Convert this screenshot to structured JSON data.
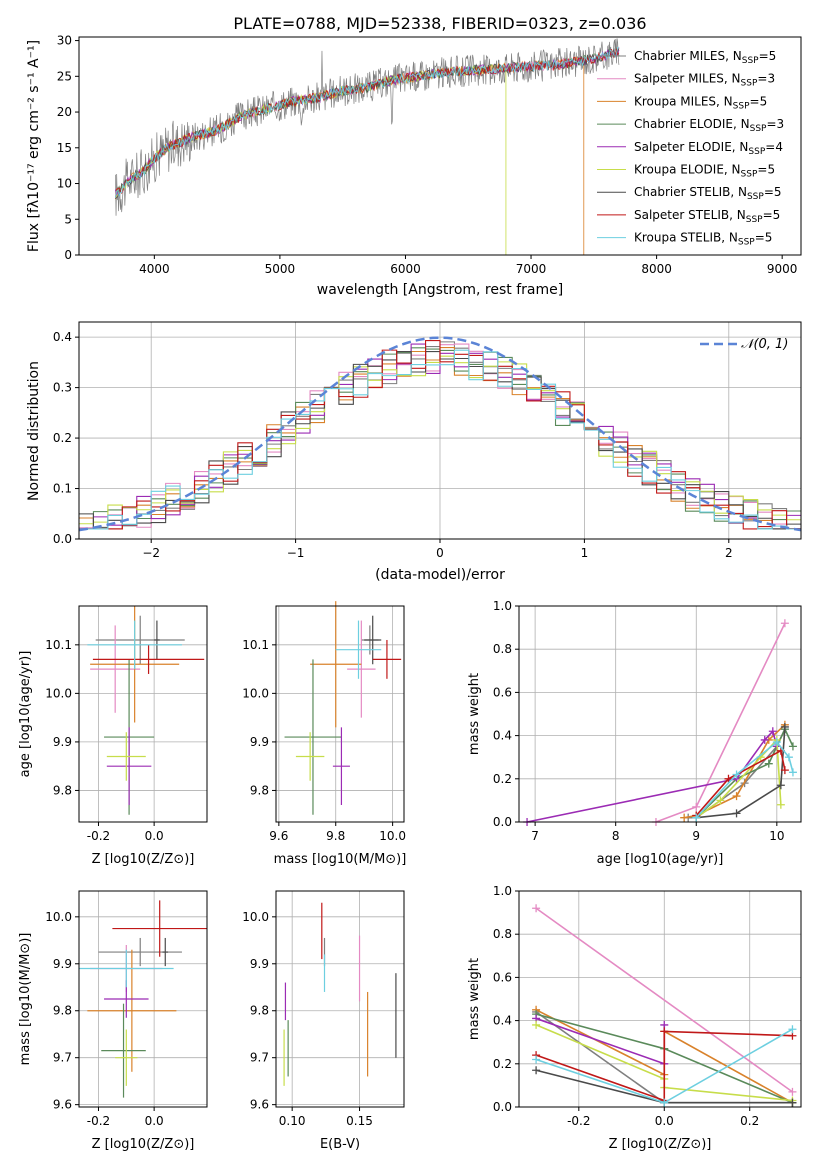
{
  "figure_title": "PLATE=0788, MJD=52338, FIBERID=0323, z=0.036",
  "colors": {
    "spectrum_data": "#7f7f7f",
    "gaussian": "#5b84d6",
    "models": [
      "#7f7f7f",
      "#e48ac3",
      "#d9822b",
      "#5a8a5a",
      "#9b2bb4",
      "#c7dd4a",
      "#4a4a4a",
      "#c01818",
      "#6dcfe0"
    ]
  },
  "legend_models": [
    {
      "prefix": "Chabrier MILES, N",
      "sub": "SSP",
      "suffix": "=5"
    },
    {
      "prefix": "Salpeter MILES, N",
      "sub": "SSP",
      "suffix": "=3"
    },
    {
      "prefix": "Kroupa MILES, N",
      "sub": "SSP",
      "suffix": "=5"
    },
    {
      "prefix": "Chabrier ELODIE, N",
      "sub": "SSP",
      "suffix": "=3"
    },
    {
      "prefix": "Salpeter ELODIE, N",
      "sub": "SSP",
      "suffix": "=4"
    },
    {
      "prefix": "Kroupa ELODIE, N",
      "sub": "SSP",
      "suffix": "=5"
    },
    {
      "prefix": "Chabrier STELIB, N",
      "sub": "SSP",
      "suffix": "=5"
    },
    {
      "prefix": "Salpeter STELIB, N",
      "sub": "SSP",
      "suffix": "=5"
    },
    {
      "prefix": "Kroupa STELIB, N",
      "sub": "SSP",
      "suffix": "=5"
    }
  ],
  "chart_data": [
    {
      "type": "line",
      "id": "spectrum",
      "title": "PLATE=0788, MJD=52338, FIBERID=0323, z=0.036",
      "xlabel": "wavelength [Angstrom, rest frame]",
      "ylabel": "Flux [fλ10⁻¹⁷ erg cm⁻² s⁻¹ A⁻¹]",
      "xlim": [
        3400,
        9150
      ],
      "ylim": [
        0,
        30.5
      ],
      "xticks": [
        4000,
        5000,
        6000,
        7000,
        8000,
        9000
      ],
      "yticks": [
        0,
        5,
        10,
        15,
        20,
        25,
        30
      ],
      "continuum_x": [
        3700,
        3800,
        3900,
        4000,
        4100,
        4300,
        4500,
        4700,
        4900,
        5100,
        5300,
        5500,
        5700,
        5900,
        6100,
        6300,
        6500,
        6700,
        6900,
        7100,
        7300,
        7500,
        7700
      ],
      "continuum_y": [
        8.5,
        10.5,
        11.5,
        13.5,
        15,
        16.5,
        17.5,
        19.5,
        20.5,
        21.5,
        22,
        23,
        23.5,
        24.5,
        25,
        25.5,
        25.8,
        26,
        26.3,
        26.5,
        26.8,
        27.5,
        28.5
      ],
      "model_cutoffs": [
        {
          "model": "Kroupa ELODIE",
          "x": 6800
        },
        {
          "model": "Kroupa MILES",
          "x": 7420
        }
      ],
      "legend_position": "right"
    },
    {
      "type": "bar",
      "id": "residuals",
      "xlabel": "(data-model)/error",
      "ylabel": "Normed distribution",
      "xlim": [
        -2.5,
        2.5
      ],
      "ylim": [
        0,
        0.43
      ],
      "xticks": [
        -2,
        -1,
        0,
        1,
        2
      ],
      "yticks": [
        0.0,
        0.1,
        0.2,
        0.3,
        0.4
      ],
      "bin_width": 0.1,
      "reference_curve": "N(0,1)",
      "legend_label": "𝒩(0, 1)",
      "legend_position": "top-right",
      "grid": true
    },
    {
      "type": "scatter",
      "id": "age_vs_Z",
      "xlabel": "Z [log10(Z/Z⊙)]",
      "ylabel": "age [log10(age/yr)]",
      "xlim": [
        -0.27,
        0.19
      ],
      "ylim": [
        9.735,
        10.18
      ],
      "xticks": [
        -0.2,
        0.0
      ],
      "yticks": [
        9.8,
        9.9,
        10.0,
        10.1
      ],
      "points": [
        {
          "x": -0.05,
          "y": 10.11,
          "xerr": 0.16,
          "yerr": 0.05
        },
        {
          "x": -0.14,
          "y": 10.05,
          "xerr": 0.09,
          "yerr": 0.09
        },
        {
          "x": -0.07,
          "y": 10.06,
          "xerr": 0.16,
          "yerr": 0.12
        },
        {
          "x": -0.09,
          "y": 9.91,
          "xerr": 0.09,
          "yerr": 0.16
        },
        {
          "x": -0.09,
          "y": 9.85,
          "xerr": 0.08,
          "yerr": 0.08
        },
        {
          "x": -0.1,
          "y": 9.87,
          "xerr": 0.07,
          "yerr": 0.05
        },
        {
          "x": 0.01,
          "y": 10.11,
          "xerr": 0.01,
          "yerr": 0.04
        },
        {
          "x": -0.02,
          "y": 10.07,
          "xerr": 0.2,
          "yerr": 0.03
        },
        {
          "x": -0.07,
          "y": 10.1,
          "xerr": 0.17,
          "yerr": 0.05
        }
      ]
    },
    {
      "type": "scatter",
      "id": "age_vs_mass",
      "xlabel": "mass [log10(M/M⊙)]",
      "ylabel": "",
      "xlim": [
        9.59,
        10.04
      ],
      "ylim": [
        9.735,
        10.18
      ],
      "xticks": [
        9.6,
        9.8,
        10.0
      ],
      "yticks": [
        9.8,
        9.9,
        10.0,
        10.1
      ],
      "points": [
        {
          "x": 9.92,
          "y": 10.11,
          "xerr": 0.03,
          "yerr": 0.03
        },
        {
          "x": 9.89,
          "y": 10.05,
          "xerr": 0.05,
          "yerr": 0.1
        },
        {
          "x": 9.8,
          "y": 10.06,
          "xerr": 0.09,
          "yerr": 0.13
        },
        {
          "x": 9.72,
          "y": 9.91,
          "xerr": 0.1,
          "yerr": 0.16
        },
        {
          "x": 9.82,
          "y": 9.85,
          "xerr": 0.03,
          "yerr": 0.08
        },
        {
          "x": 9.71,
          "y": 9.87,
          "xerr": 0.05,
          "yerr": 0.05
        },
        {
          "x": 9.93,
          "y": 10.11,
          "xerr": 0.03,
          "yerr": 0.05
        },
        {
          "x": 9.98,
          "y": 10.07,
          "xerr": 0.05,
          "yerr": 0.04
        },
        {
          "x": 9.88,
          "y": 10.09,
          "xerr": 0.08,
          "yerr": 0.06
        }
      ]
    },
    {
      "type": "line",
      "id": "mass_weight_vs_age",
      "xlabel": "age [log10(age/yr)]",
      "ylabel": "mass weight",
      "xlim": [
        6.8,
        10.3
      ],
      "ylim": [
        0,
        1
      ],
      "xticks": [
        7,
        8,
        9,
        10
      ],
      "yticks": [
        0.0,
        0.2,
        0.4,
        0.6,
        0.8,
        1.0
      ],
      "grid": true,
      "series": [
        {
          "model": "Chabrier MILES",
          "x": [
            8.9,
            9.0,
            9.6,
            10.0,
            10.1
          ],
          "y": [
            0.02,
            0.02,
            0.18,
            0.35,
            0.43
          ]
        },
        {
          "model": "Salpeter MILES",
          "x": [
            8.5,
            9.0,
            10.1
          ],
          "y": [
            0.0,
            0.07,
            0.92
          ]
        },
        {
          "model": "Kroupa MILES",
          "x": [
            8.85,
            9.0,
            9.5,
            9.9,
            10.1
          ],
          "y": [
            0.02,
            0.03,
            0.12,
            0.38,
            0.45
          ]
        },
        {
          "model": "Chabrier ELODIE",
          "x": [
            9.0,
            9.5,
            9.9,
            10.1,
            10.2
          ],
          "y": [
            0.02,
            0.2,
            0.27,
            0.43,
            0.35
          ]
        },
        {
          "model": "Salpeter ELODIE",
          "x": [
            6.9,
            9.5,
            9.85,
            9.95,
            10.0
          ],
          "y": [
            0.0,
            0.2,
            0.38,
            0.42,
            0.35
          ]
        },
        {
          "model": "Kroupa ELODIE",
          "x": [
            9.0,
            9.3,
            9.8,
            10.0,
            10.05
          ],
          "y": [
            0.02,
            0.1,
            0.3,
            0.38,
            0.08
          ]
        },
        {
          "model": "Chabrier STELIB",
          "x": [
            9.0,
            9.5,
            10.05,
            10.1
          ],
          "y": [
            0.02,
            0.04,
            0.17,
            0.44
          ]
        },
        {
          "model": "Salpeter STELIB",
          "x": [
            9.0,
            9.4,
            10.05,
            10.1
          ],
          "y": [
            0.03,
            0.2,
            0.33,
            0.24
          ]
        },
        {
          "model": "Kroupa STELIB",
          "x": [
            9.0,
            9.5,
            10.0,
            10.15,
            10.2
          ],
          "y": [
            0.02,
            0.22,
            0.37,
            0.3,
            0.23
          ]
        }
      ]
    },
    {
      "type": "scatter",
      "id": "mass_vs_Z",
      "xlabel": "Z [log10(Z/Z⊙)]",
      "ylabel": "mass [log10(M/M⊙)]",
      "xlim": [
        -0.27,
        0.19
      ],
      "ylim": [
        9.595,
        10.055
      ],
      "xticks": [
        -0.2,
        0.0
      ],
      "yticks": [
        9.6,
        9.7,
        9.8,
        9.9,
        10.0
      ],
      "points": [
        {
          "x": -0.05,
          "y": 9.925,
          "xerr": 0.15,
          "yerr": 0.03
        },
        {
          "x": -0.1,
          "y": 9.89,
          "xerr": 0.13,
          "yerr": 0.05
        },
        {
          "x": -0.08,
          "y": 9.8,
          "xerr": 0.16,
          "yerr": 0.13
        },
        {
          "x": -0.11,
          "y": 9.715,
          "xerr": 0.08,
          "yerr": 0.1
        },
        {
          "x": -0.1,
          "y": 9.825,
          "xerr": 0.08,
          "yerr": 0.04
        },
        {
          "x": -0.1,
          "y": 9.7,
          "xerr": 0.04,
          "yerr": 0.06
        },
        {
          "x": 0.04,
          "y": 9.925,
          "xerr": 0.01,
          "yerr": 0.03
        },
        {
          "x": 0.02,
          "y": 9.975,
          "xerr": 0.17,
          "yerr": 0.06
        },
        {
          "x": -0.1,
          "y": 9.89,
          "xerr": 0.17,
          "yerr": 0.04
        }
      ]
    },
    {
      "type": "scatter",
      "id": "mass_vs_EBV",
      "xlabel": "E(B-V)",
      "ylabel": "",
      "xlim": [
        0.088,
        0.183
      ],
      "ylim": [
        9.595,
        10.055
      ],
      "xticks": [
        0.1,
        0.15
      ],
      "yticks": [
        9.6,
        9.7,
        9.8,
        9.9,
        10.0
      ],
      "points": [
        {
          "x": 0.124,
          "y": 9.925,
          "yerr": 0.03
        },
        {
          "x": 0.15,
          "y": 9.89,
          "yerr": 0.07
        },
        {
          "x": 0.156,
          "y": 9.75,
          "yerr": 0.09
        },
        {
          "x": 0.097,
          "y": 9.72,
          "yerr": 0.06
        },
        {
          "x": 0.095,
          "y": 9.82,
          "yerr": 0.04
        },
        {
          "x": 0.094,
          "y": 9.7,
          "yerr": 0.06
        },
        {
          "x": 0.177,
          "y": 9.79,
          "yerr": 0.09
        },
        {
          "x": 0.122,
          "y": 9.97,
          "yerr": 0.06
        },
        {
          "x": 0.124,
          "y": 9.88,
          "yerr": 0.04
        }
      ]
    },
    {
      "type": "line",
      "id": "mass_weight_vs_Z",
      "xlabel": "Z [log10(Z/Z⊙)]",
      "ylabel": "mass weight",
      "xlim": [
        -0.34,
        0.32
      ],
      "ylim": [
        0,
        1
      ],
      "xticks": [
        -0.2,
        0.0,
        0.2
      ],
      "yticks": [
        0.0,
        0.2,
        0.4,
        0.6,
        0.8,
        1.0
      ],
      "grid": true,
      "series": [
        {
          "model": "Chabrier MILES",
          "x": [
            -0.3,
            0.0,
            0.3
          ],
          "y": [
            0.44,
            0.02,
            0.02
          ]
        },
        {
          "model": "Salpeter MILES",
          "x": [
            -0.3,
            0.3
          ],
          "y": [
            0.92,
            0.07
          ]
        },
        {
          "model": "Kroupa MILES",
          "x": [
            -0.3,
            0.0,
            0.0,
            0.3
          ],
          "y": [
            0.45,
            0.15,
            0.35,
            0.02
          ]
        },
        {
          "model": "Chabrier ELODIE",
          "x": [
            -0.3,
            0.0,
            0.3
          ],
          "y": [
            0.43,
            0.27,
            0.02
          ]
        },
        {
          "model": "Salpeter ELODIE",
          "x": [
            -0.3,
            0.0,
            0.0
          ],
          "y": [
            0.41,
            0.2,
            0.38
          ]
        },
        {
          "model": "Kroupa ELODIE",
          "x": [
            -0.3,
            0.0,
            0.0,
            0.3
          ],
          "y": [
            0.38,
            0.13,
            0.09,
            0.03
          ]
        },
        {
          "model": "Chabrier STELIB",
          "x": [
            -0.3,
            0.0,
            0.3
          ],
          "y": [
            0.17,
            0.02,
            0.02
          ]
        },
        {
          "model": "Salpeter STELIB",
          "x": [
            -0.3,
            0.0,
            0.0,
            0.3
          ],
          "y": [
            0.24,
            0.03,
            0.35,
            0.33
          ]
        },
        {
          "model": "Kroupa STELIB",
          "x": [
            -0.3,
            0.0,
            0.3
          ],
          "y": [
            0.22,
            0.02,
            0.36
          ]
        }
      ]
    }
  ]
}
